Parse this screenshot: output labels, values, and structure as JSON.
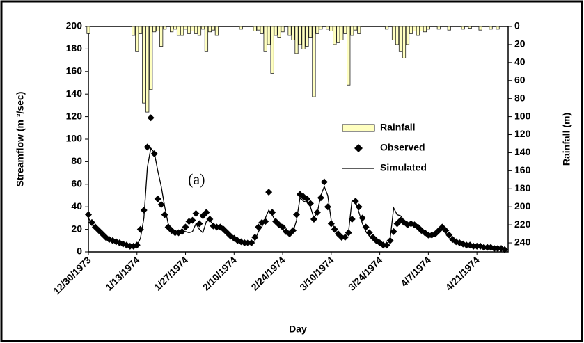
{
  "chart_data": {
    "type": "combo",
    "x_label": "Day",
    "y_label": "Streamflow (m ³/sec)",
    "y2_label": "Rainfall (m)",
    "annotation": "(a)",
    "xlim": [
      0,
      121
    ],
    "xticks": [
      {
        "value": 0,
        "label": "12/30/1973"
      },
      {
        "value": 14,
        "label": "1/13/1974"
      },
      {
        "value": 28,
        "label": "1/27/1974"
      },
      {
        "value": 42,
        "label": "2/10/1974"
      },
      {
        "value": 56,
        "label": "2/24/1974"
      },
      {
        "value": 70,
        "label": "3/10/1974"
      },
      {
        "value": 84,
        "label": "3/24/1974"
      },
      {
        "value": 98,
        "label": "4/7/1974"
      },
      {
        "value": 112,
        "label": "4/21/1974"
      }
    ],
    "ylim": [
      0,
      200
    ],
    "yticks": [
      0,
      20,
      40,
      60,
      80,
      100,
      120,
      140,
      160,
      180,
      200
    ],
    "y2lim": [
      0,
      250
    ],
    "y2_inverted": true,
    "y2ticks": [
      0,
      20,
      40,
      60,
      80,
      100,
      120,
      140,
      160,
      180,
      200,
      220,
      240
    ],
    "legend": "right",
    "x": [
      0,
      1,
      2,
      3,
      4,
      5,
      6,
      7,
      8,
      9,
      10,
      11,
      12,
      13,
      14,
      15,
      16,
      17,
      18,
      19,
      20,
      21,
      22,
      23,
      24,
      25,
      26,
      27,
      28,
      29,
      30,
      31,
      32,
      33,
      34,
      35,
      36,
      37,
      38,
      39,
      40,
      41,
      42,
      43,
      44,
      45,
      46,
      47,
      48,
      49,
      50,
      51,
      52,
      53,
      54,
      55,
      56,
      57,
      58,
      59,
      60,
      61,
      62,
      63,
      64,
      65,
      66,
      67,
      68,
      69,
      70,
      71,
      72,
      73,
      74,
      75,
      76,
      77,
      78,
      79,
      80,
      81,
      82,
      83,
      84,
      85,
      86,
      87,
      88,
      89,
      90,
      91,
      92,
      93,
      94,
      95,
      96,
      97,
      98,
      99,
      100,
      101,
      102,
      103,
      104,
      105,
      106,
      107,
      108,
      109,
      110,
      111,
      112,
      113,
      114,
      115,
      116,
      117,
      118,
      119,
      120
    ],
    "series": [
      {
        "name": "Rainfall",
        "type": "bar",
        "axis": "y2",
        "color": "#ffffc0",
        "values": [
          8,
          0,
          0,
          0,
          0,
          0,
          0,
          0,
          0,
          0,
          0,
          0,
          0,
          10,
          28,
          8,
          85,
          95,
          70,
          6,
          5,
          22,
          3,
          0,
          6,
          3,
          10,
          10,
          3,
          8,
          5,
          8,
          10,
          3,
          28,
          6,
          4,
          10,
          0,
          0,
          0,
          0,
          0,
          0,
          3,
          0,
          0,
          0,
          5,
          4,
          8,
          28,
          20,
          52,
          10,
          12,
          6,
          0,
          10,
          15,
          30,
          20,
          25,
          22,
          12,
          78,
          8,
          3,
          0,
          3,
          5,
          20,
          18,
          15,
          8,
          65,
          10,
          4,
          8,
          0,
          0,
          0,
          0,
          0,
          0,
          0,
          3,
          0,
          15,
          20,
          28,
          35,
          20,
          8,
          5,
          10,
          5,
          6,
          3,
          0,
          0,
          3,
          0,
          0,
          4,
          0,
          0,
          0,
          3,
          0,
          2,
          0,
          0,
          4,
          0,
          0,
          3,
          0,
          3,
          0,
          0
        ]
      },
      {
        "name": "Observed",
        "type": "scatter",
        "color": "#000000",
        "values": [
          33,
          26,
          22,
          19,
          16,
          13,
          11,
          10,
          9,
          8,
          7,
          6,
          5,
          5,
          6,
          20,
          37,
          93,
          119,
          87,
          47,
          42,
          33,
          22,
          19,
          17,
          17,
          18,
          22,
          27,
          28,
          34,
          25,
          32,
          35,
          29,
          23,
          22,
          22,
          20,
          17,
          14,
          12,
          10,
          9,
          8,
          8,
          8,
          13,
          22,
          26,
          27,
          53,
          35,
          27,
          24,
          22,
          18,
          16,
          19,
          33,
          51,
          49,
          47,
          43,
          29,
          35,
          48,
          62,
          40,
          25,
          20,
          16,
          13,
          13,
          17,
          29,
          45,
          40,
          30,
          22,
          17,
          13,
          10,
          8,
          6,
          6,
          10,
          18,
          25,
          28,
          26,
          24,
          25,
          24,
          22,
          19,
          17,
          15,
          15,
          16,
          19,
          22,
          19,
          15,
          11,
          9,
          8,
          7,
          6,
          6,
          5,
          5,
          5,
          4,
          4,
          4,
          3,
          3,
          3,
          2
        ]
      },
      {
        "name": "Simulated",
        "type": "line",
        "color": "#000000",
        "values": [
          30,
          25,
          21,
          18,
          15,
          13,
          11,
          10,
          9,
          8,
          7,
          6,
          6,
          5,
          6,
          12,
          30,
          75,
          92,
          88,
          72,
          58,
          40,
          25,
          20,
          18,
          17,
          17,
          18,
          17,
          18,
          25,
          20,
          17,
          27,
          28,
          24,
          21,
          20,
          19,
          16,
          13,
          11,
          9,
          8,
          7,
          7,
          7,
          10,
          18,
          22,
          30,
          37,
          33,
          26,
          22,
          20,
          17,
          15,
          18,
          28,
          48,
          45,
          44,
          40,
          30,
          35,
          50,
          58,
          50,
          28,
          20,
          15,
          12,
          12,
          18,
          46,
          45,
          35,
          25,
          18,
          14,
          11,
          9,
          7,
          6,
          6,
          12,
          39,
          33,
          32,
          28,
          26,
          25,
          24,
          22,
          18,
          15,
          13,
          13,
          14,
          17,
          20,
          18,
          13,
          10,
          8,
          7,
          6,
          5,
          5,
          4,
          4,
          4,
          3,
          3,
          3,
          3,
          3,
          2,
          2
        ]
      }
    ]
  }
}
